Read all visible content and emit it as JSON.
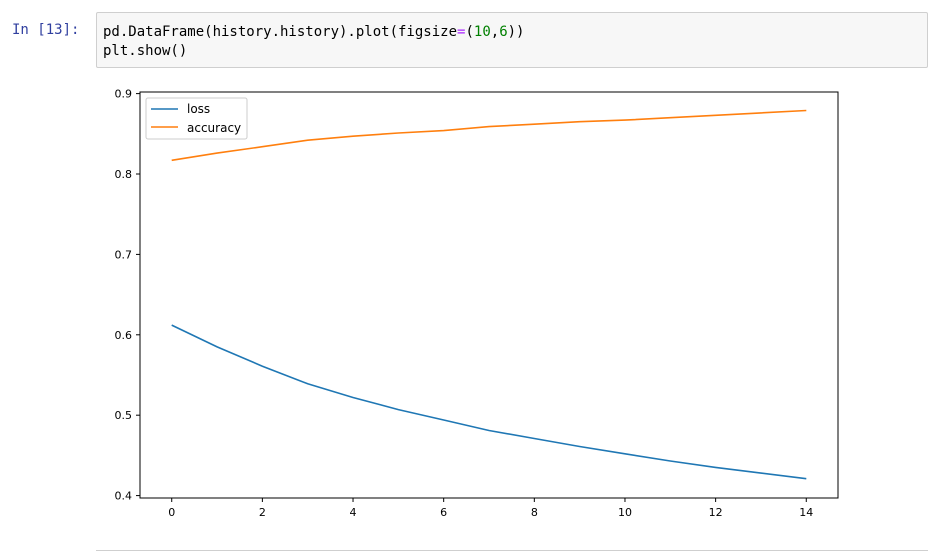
{
  "cell": {
    "prompt": "In [13]:",
    "code": {
      "line1": {
        "part1": "pd.DataFrame(history.history).plot(figsize",
        "op": "=",
        "part2": "(",
        "num1": "10",
        "part3": ",",
        "num2": "6",
        "part4": "))"
      },
      "line2": "plt.show()"
    }
  },
  "colors": {
    "loss": "#1f77b4",
    "accuracy": "#ff7f0e"
  },
  "chart_data": {
    "type": "line",
    "x": [
      0,
      1,
      2,
      3,
      4,
      5,
      6,
      7,
      8,
      9,
      10,
      11,
      12,
      13,
      14
    ],
    "series": [
      {
        "name": "loss",
        "values": [
          0.612,
          0.585,
          0.561,
          0.539,
          0.522,
          0.507,
          0.494,
          0.481,
          0.471,
          0.461,
          0.452,
          0.443,
          0.435,
          0.428,
          0.421
        ]
      },
      {
        "name": "accuracy",
        "values": [
          0.817,
          0.826,
          0.834,
          0.842,
          0.847,
          0.851,
          0.854,
          0.859,
          0.862,
          0.865,
          0.867,
          0.87,
          0.873,
          0.876,
          0.879
        ]
      }
    ],
    "xticks": [
      "0",
      "2",
      "4",
      "6",
      "8",
      "10",
      "12",
      "14"
    ],
    "yticks": [
      "0.4",
      "0.5",
      "0.6",
      "0.7",
      "0.8",
      "0.9"
    ],
    "xlim": [
      -0.7,
      14.7
    ],
    "ylim": [
      0.397,
      0.902
    ],
    "grid": false,
    "legend_position": "top-left"
  }
}
